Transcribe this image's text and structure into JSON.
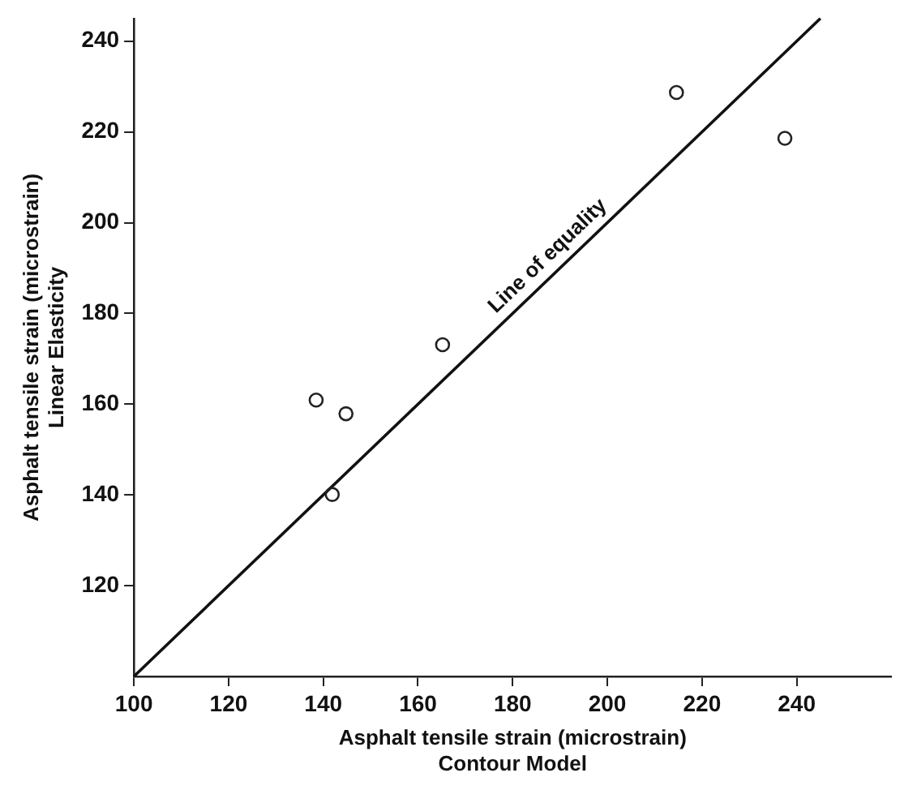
{
  "chart_data": {
    "type": "scatter",
    "xlabel": "Asphalt tensile strain (microstrain)\nContour Model",
    "ylabel": "Asphalt tensile strain (microstrain)\nLinear Elasticity",
    "xlim": [
      100,
      260
    ],
    "ylim": [
      100,
      245
    ],
    "xticks": [
      100,
      120,
      140,
      160,
      180,
      200,
      220,
      240
    ],
    "yticks": [
      120,
      140,
      160,
      180,
      200,
      220,
      240
    ],
    "grid": false,
    "marker": "circle",
    "series": [
      {
        "color": "#222222",
        "x": [
          138.5,
          144.8,
          141.9,
          165.2,
          214.6,
          237.5
        ],
        "values": [
          160.9,
          157.9,
          140.1,
          173.1,
          228.7,
          218.6
        ]
      },
      {
        "type": "line",
        "name": "Line of equality",
        "color": "#111111",
        "line_style": "solid",
        "marker": "none",
        "x": [
          100,
          245
        ],
        "values": [
          100,
          245
        ]
      }
    ]
  }
}
